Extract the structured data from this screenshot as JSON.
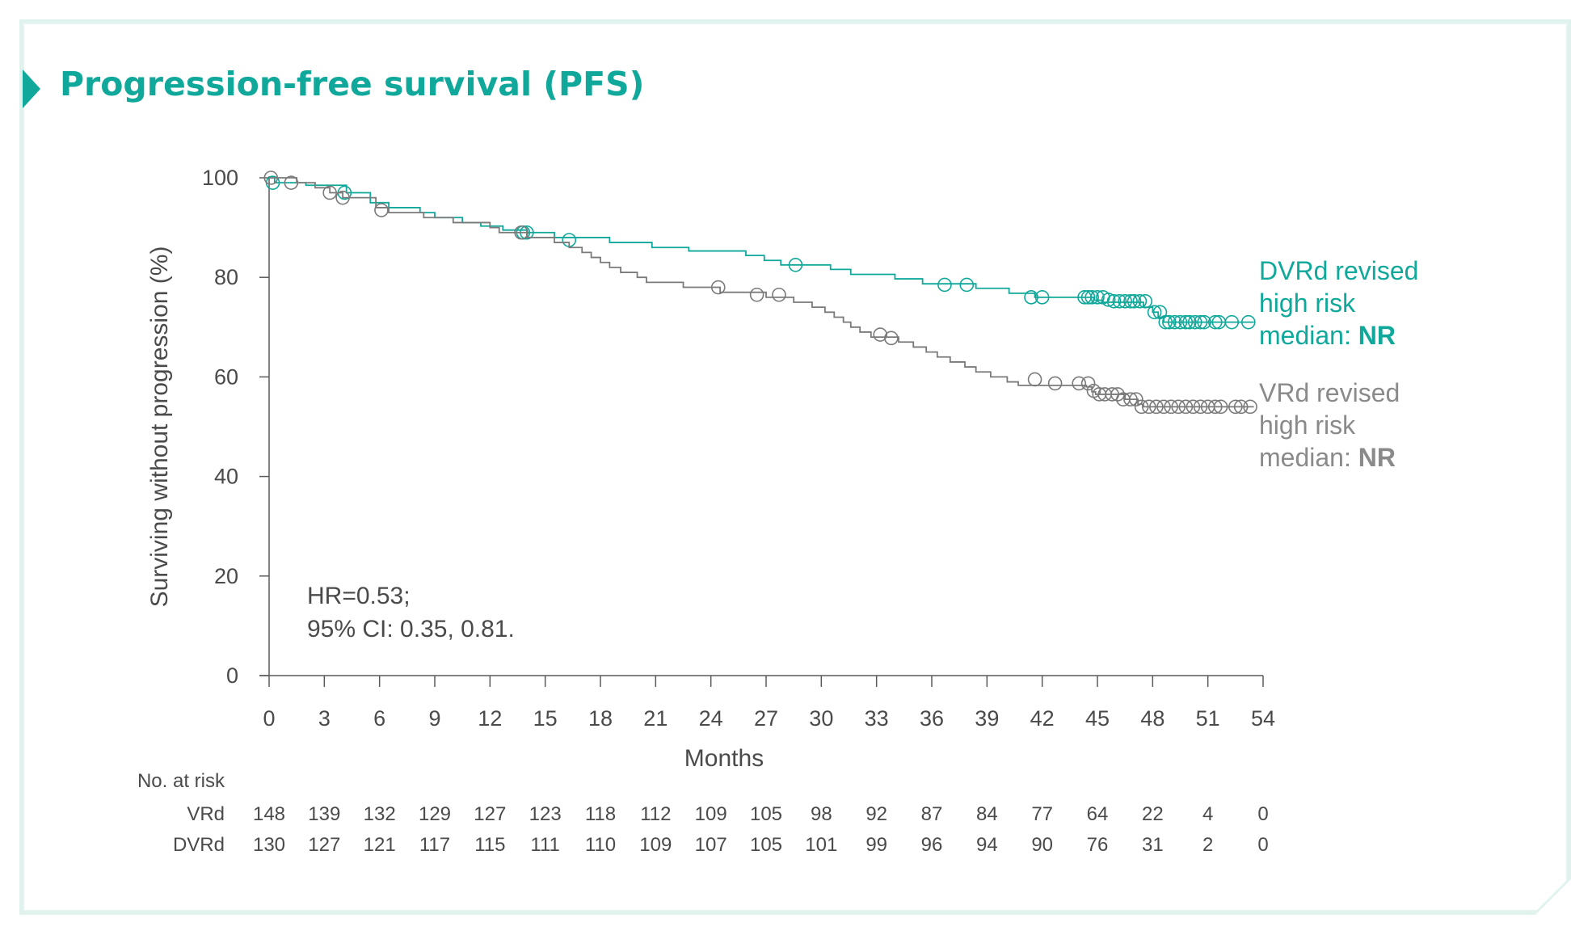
{
  "title": "Progression-free survival (PFS)",
  "colors": {
    "dvrd": "#0fa89a",
    "vrd": "#7a7a7a",
    "axis": "#5a5a5a",
    "text": "#4a4a4a"
  },
  "annotation": {
    "line1": "HR=0.53;",
    "line2": "95% CI: 0.35, 0.81."
  },
  "legend": {
    "dvrd": {
      "line1": "DVRd revised",
      "line2": "high risk",
      "line3_prefix": "median: ",
      "line3_value": "NR"
    },
    "vrd": {
      "line1": "VRd revised",
      "line2": "high risk",
      "line3_prefix": "median: ",
      "line3_value": "NR"
    }
  },
  "risk_table": {
    "header": "No. at risk",
    "rows": [
      {
        "label": "VRd",
        "values": [
          "148",
          "139",
          "132",
          "129",
          "127",
          "123",
          "118",
          "112",
          "109",
          "105",
          "98",
          "92",
          "87",
          "84",
          "77",
          "64",
          "22",
          "4",
          "0"
        ]
      },
      {
        "label": "DVRd",
        "values": [
          "130",
          "127",
          "121",
          "117",
          "115",
          "111",
          "110",
          "109",
          "107",
          "105",
          "101",
          "99",
          "96",
          "94",
          "90",
          "76",
          "31",
          "2",
          "0"
        ]
      }
    ]
  },
  "chart_data": {
    "type": "line",
    "xlabel": "Months",
    "ylabel": "Surviving without progression (%)",
    "xlim": [
      0,
      54
    ],
    "ylim": [
      0,
      100
    ],
    "xticks": [
      0,
      3,
      6,
      9,
      12,
      15,
      18,
      21,
      24,
      27,
      30,
      33,
      36,
      39,
      42,
      45,
      48,
      51,
      54
    ],
    "yticks": [
      0,
      20,
      40,
      60,
      80,
      100
    ],
    "grid": false,
    "series": [
      {
        "name": "DVRd",
        "color": "#0fa89a",
        "steps": [
          [
            0,
            100
          ],
          [
            0.3,
            99
          ],
          [
            2,
            98.5
          ],
          [
            4.2,
            97
          ],
          [
            5.5,
            95
          ],
          [
            6.5,
            94
          ],
          [
            8.2,
            93
          ],
          [
            9,
            92
          ],
          [
            10.5,
            91
          ],
          [
            11.5,
            90.3
          ],
          [
            12.7,
            89.5
          ],
          [
            14,
            89
          ],
          [
            15.5,
            88
          ],
          [
            18.5,
            87
          ],
          [
            20.8,
            86
          ],
          [
            21.8,
            86
          ],
          [
            22.8,
            85.3
          ],
          [
            24.3,
            85.3
          ],
          [
            25.9,
            84.4
          ],
          [
            26.9,
            83.4
          ],
          [
            27.8,
            82.5
          ],
          [
            30.5,
            81.6
          ],
          [
            31.6,
            80.6
          ],
          [
            34,
            79.7
          ],
          [
            35.5,
            78.7
          ],
          [
            38.4,
            77.8
          ],
          [
            40.2,
            76.8
          ],
          [
            41.6,
            76
          ],
          [
            44.8,
            75.4
          ],
          [
            45.3,
            75
          ],
          [
            47.5,
            74
          ],
          [
            48,
            73
          ],
          [
            48.3,
            72
          ],
          [
            48.6,
            71
          ],
          [
            53.5,
            71
          ]
        ],
        "censored": [
          [
            0.2,
            99
          ],
          [
            4.1,
            97
          ],
          [
            13.8,
            89
          ],
          [
            14,
            89
          ],
          [
            16.3,
            87.5
          ],
          [
            28.6,
            82.5
          ],
          [
            36.7,
            78.5
          ],
          [
            37.9,
            78.5
          ],
          [
            41.4,
            76
          ],
          [
            42,
            76
          ],
          [
            44.3,
            76
          ],
          [
            44.5,
            76
          ],
          [
            44.7,
            76
          ],
          [
            45,
            76
          ],
          [
            45.3,
            76
          ],
          [
            45.6,
            75.5
          ],
          [
            45.9,
            75.2
          ],
          [
            46.2,
            75.2
          ],
          [
            46.5,
            75.2
          ],
          [
            46.8,
            75.2
          ],
          [
            47,
            75.2
          ],
          [
            47.3,
            75.2
          ],
          [
            47.6,
            75.2
          ],
          [
            48.1,
            73
          ],
          [
            48.4,
            73
          ],
          [
            48.7,
            71
          ],
          [
            48.9,
            71
          ],
          [
            49.2,
            71
          ],
          [
            49.5,
            71
          ],
          [
            49.8,
            71
          ],
          [
            50,
            71
          ],
          [
            50.3,
            71
          ],
          [
            50.6,
            71
          ],
          [
            50.8,
            71
          ],
          [
            51.4,
            71
          ],
          [
            51.6,
            71
          ],
          [
            52.3,
            71
          ],
          [
            53.2,
            71
          ]
        ]
      },
      {
        "name": "VRd",
        "color": "#7a7a7a",
        "steps": [
          [
            0,
            100
          ],
          [
            1.5,
            99
          ],
          [
            2.5,
            98
          ],
          [
            3.3,
            97
          ],
          [
            4,
            96
          ],
          [
            5.8,
            94
          ],
          [
            6.5,
            93
          ],
          [
            8.4,
            92
          ],
          [
            10,
            91
          ],
          [
            12,
            90
          ],
          [
            12.5,
            89
          ],
          [
            14,
            88
          ],
          [
            15.5,
            87
          ],
          [
            16.3,
            86
          ],
          [
            17,
            85
          ],
          [
            17.5,
            84
          ],
          [
            18,
            83
          ],
          [
            18.5,
            82
          ],
          [
            19.1,
            81
          ],
          [
            20,
            80
          ],
          [
            20.5,
            79
          ],
          [
            22.5,
            78
          ],
          [
            24.5,
            77
          ],
          [
            27,
            76
          ],
          [
            28.5,
            75
          ],
          [
            29.5,
            74
          ],
          [
            30.2,
            73
          ],
          [
            30.7,
            72
          ],
          [
            31.2,
            71
          ],
          [
            31.6,
            70
          ],
          [
            32.1,
            69
          ],
          [
            32.7,
            68
          ],
          [
            34.2,
            67
          ],
          [
            35,
            66
          ],
          [
            35.7,
            65
          ],
          [
            36.3,
            64
          ],
          [
            37,
            63
          ],
          [
            37.8,
            62
          ],
          [
            38.4,
            61
          ],
          [
            39.2,
            60
          ],
          [
            40.1,
            59
          ],
          [
            40.7,
            58.3
          ],
          [
            44.4,
            58
          ],
          [
            44.7,
            57
          ],
          [
            44.9,
            56.5
          ],
          [
            46.5,
            55.5
          ],
          [
            47.2,
            54.5
          ],
          [
            47.5,
            54
          ],
          [
            53.5,
            54
          ]
        ],
        "censored": [
          [
            0.1,
            100
          ],
          [
            1.2,
            99
          ],
          [
            3.3,
            97
          ],
          [
            4,
            96
          ],
          [
            6.1,
            93.5
          ],
          [
            13.7,
            89
          ],
          [
            24.4,
            78
          ],
          [
            26.5,
            76.5
          ],
          [
            27.7,
            76.5
          ],
          [
            33.2,
            68.5
          ],
          [
            33.8,
            67.8
          ],
          [
            41.6,
            59.5
          ],
          [
            42.7,
            58.7
          ],
          [
            44,
            58.7
          ],
          [
            44.5,
            58.7
          ],
          [
            44.8,
            57.2
          ],
          [
            45.1,
            56.5
          ],
          [
            45.4,
            56.5
          ],
          [
            45.8,
            56.5
          ],
          [
            46.1,
            56.5
          ],
          [
            46.4,
            55.5
          ],
          [
            46.8,
            55.5
          ],
          [
            47.1,
            55.5
          ],
          [
            47.4,
            54
          ],
          [
            47.8,
            54
          ],
          [
            48.2,
            54
          ],
          [
            48.6,
            54
          ],
          [
            49,
            54
          ],
          [
            49.4,
            54
          ],
          [
            49.8,
            54
          ],
          [
            50.2,
            54
          ],
          [
            50.6,
            54
          ],
          [
            51,
            54
          ],
          [
            51.4,
            54
          ],
          [
            51.7,
            54
          ],
          [
            52.5,
            54
          ],
          [
            52.8,
            54
          ],
          [
            53.3,
            54
          ]
        ]
      }
    ]
  }
}
